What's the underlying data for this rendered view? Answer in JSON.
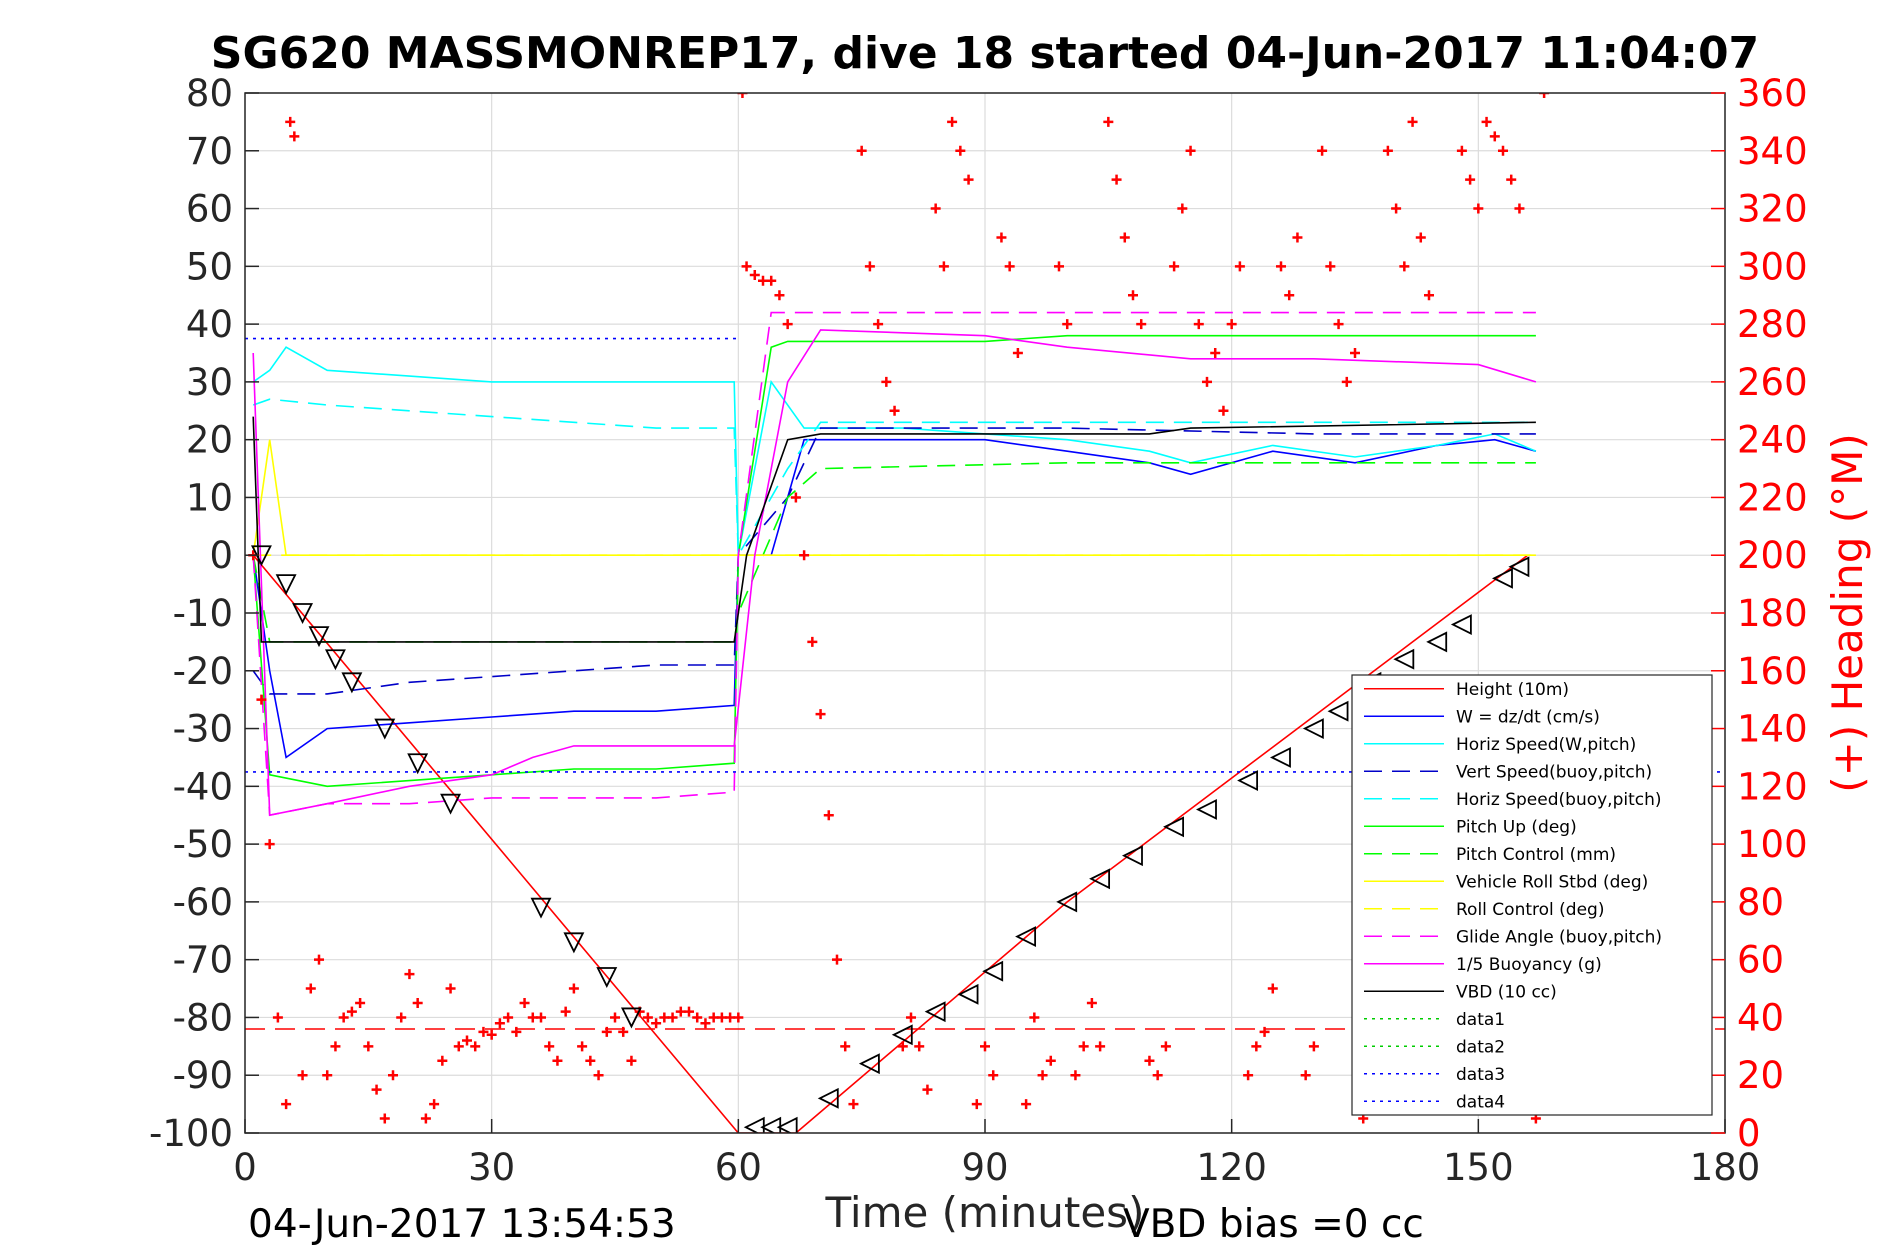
{
  "chart_data": {
    "type": "line",
    "title": "SG620 MASSMONREP17, dive 18 started 04-Jun-2017 11:04:07",
    "xlabel": "Time (minutes)",
    "ylabel_right": "(+) Heading (°M)",
    "xlim": [
      0,
      180
    ],
    "ylim": [
      -100,
      80
    ],
    "ylim_right": [
      0,
      360
    ],
    "x_ticks": [
      0,
      30,
      60,
      90,
      120,
      150,
      180
    ],
    "y_ticks": [
      -100,
      -90,
      -80,
      -70,
      -60,
      -50,
      -40,
      -30,
      -20,
      -10,
      0,
      10,
      20,
      30,
      40,
      50,
      60,
      70,
      80
    ],
    "y_ticks_right": [
      0,
      20,
      40,
      60,
      80,
      100,
      120,
      140,
      160,
      180,
      200,
      220,
      240,
      260,
      280,
      300,
      320,
      340,
      360
    ],
    "grid": true,
    "legend_position": "bottom-right",
    "footer_left": "04-Jun-2017 13:54:53",
    "footer_right": "VBD bias =0 cc",
    "colors": {
      "axis": "#262626",
      "grid": "#dcdcdc",
      "heading": "#ff0000",
      "right_axis": "#ff0000"
    },
    "series": [
      {
        "name": "Height (10m)",
        "color": "#ff0000",
        "style": "solid",
        "x": [
          1,
          60,
          62,
          67,
          100,
          156
        ],
        "y": [
          0,
          -100,
          -100,
          -100,
          -60,
          0
        ]
      },
      {
        "name": "W = dz/dt (cm/s)",
        "color": "#0000ff",
        "style": "solid",
        "x": [
          1,
          3,
          5,
          10,
          20,
          30,
          40,
          50,
          59.5,
          60,
          64,
          68,
          80,
          90,
          100,
          110,
          115,
          125,
          135,
          145,
          152,
          157
        ],
        "y": [
          0,
          -20,
          -35,
          -30,
          -29,
          -28,
          -27,
          -27,
          -26,
          0,
          0,
          20,
          20,
          20,
          18,
          16,
          14,
          18,
          16,
          19,
          20,
          18
        ]
      },
      {
        "name": "Horiz Speed(W,pitch)",
        "color": "#00ffff",
        "style": "solid",
        "x": [
          1,
          3,
          5,
          10,
          20,
          30,
          40,
          50,
          59.5,
          60,
          64,
          68,
          80,
          90,
          100,
          110,
          115,
          125,
          135,
          145,
          152,
          157
        ],
        "y": [
          30,
          32,
          36,
          32,
          31,
          30,
          30,
          30,
          30,
          0,
          30,
          22,
          22,
          21,
          20,
          18,
          16,
          19,
          17,
          19,
          21,
          18
        ]
      },
      {
        "name": "Vert Speed(buoy,pitch)",
        "color": "#0000c8",
        "style": "dashed",
        "x": [
          1,
          3,
          10,
          20,
          30,
          40,
          50,
          59.5,
          60,
          66,
          70,
          100,
          130,
          157
        ],
        "y": [
          -20,
          -24,
          -24,
          -22,
          -21,
          -20,
          -19,
          -19,
          0,
          10,
          22,
          22,
          21,
          21
        ]
      },
      {
        "name": "Horiz Speed(buoy,pitch)",
        "color": "#00ffff",
        "style": "dashed",
        "x": [
          1,
          3,
          10,
          20,
          30,
          40,
          50,
          59.5,
          60,
          66,
          70,
          100,
          130,
          157
        ],
        "y": [
          26,
          27,
          26,
          25,
          24,
          23,
          22,
          22,
          0,
          15,
          23,
          23,
          23,
          23
        ]
      },
      {
        "name": "Pitch Up (deg)",
        "color": "#00ff00",
        "style": "solid",
        "x": [
          1,
          3,
          10,
          20,
          30,
          40,
          50,
          59.5,
          60,
          64,
          66,
          80,
          90,
          100,
          120,
          140,
          157
        ],
        "y": [
          0,
          -38,
          -40,
          -39,
          -38,
          -37,
          -37,
          -36,
          0,
          36,
          37,
          37,
          37,
          38,
          38,
          38,
          38
        ]
      },
      {
        "name": "Pitch Control (mm)",
        "color": "#00ff00",
        "style": "dashed",
        "x": [
          1,
          3,
          30,
          59.5,
          60,
          66,
          70,
          100,
          130,
          157
        ],
        "y": [
          0,
          -15,
          -15,
          -15,
          -10,
          10,
          15,
          16,
          16,
          16
        ]
      },
      {
        "name": "Vehicle Roll Stbd (deg)",
        "color": "#ffff00",
        "style": "solid",
        "x": [
          1,
          3,
          5,
          10,
          20,
          30,
          40,
          50,
          59.5,
          60,
          64,
          66,
          75,
          80,
          90,
          100,
          110,
          120,
          130,
          140,
          150,
          157
        ],
        "y": [
          0,
          20,
          0,
          0,
          0,
          0,
          0,
          0,
          0,
          0,
          0,
          0,
          0,
          0,
          0,
          0,
          0,
          0,
          0,
          0,
          0,
          0
        ]
      },
      {
        "name": "Roll Control (deg)",
        "color": "#ffff00",
        "style": "dashed",
        "x": [
          1,
          3,
          60,
          64,
          70,
          157
        ],
        "y": [
          0,
          0,
          0,
          0,
          0,
          0
        ]
      },
      {
        "name": "Glide Angle (buoy,pitch)",
        "color": "#ff00ff",
        "style": "dashed",
        "x": [
          1,
          3,
          10,
          20,
          30,
          40,
          50,
          59.5,
          60,
          64,
          66,
          80,
          100,
          120,
          140,
          157
        ],
        "y": [
          0,
          -45,
          -43,
          -43,
          -42,
          -42,
          -42,
          -41,
          0,
          42,
          42,
          42,
          42,
          42,
          42,
          42
        ]
      },
      {
        "name": "1/5 Buoyancy (g)",
        "color": "#ff00ff",
        "style": "solid",
        "x": [
          1,
          3,
          10,
          20,
          30,
          35,
          40,
          50,
          59.5,
          62,
          66,
          70,
          90,
          100,
          115,
          130,
          150,
          157
        ],
        "y": [
          35,
          -45,
          -43,
          -40,
          -38,
          -35,
          -33,
          -33,
          -33,
          0,
          30,
          39,
          38,
          36,
          34,
          34,
          33,
          30
        ]
      },
      {
        "name": "VBD (10 cc)",
        "color": "#000000",
        "style": "solid",
        "x": [
          1,
          2,
          10,
          30,
          59.5,
          61,
          66,
          70,
          110,
          115,
          157
        ],
        "y": [
          24,
          -15,
          -15,
          -15,
          -15,
          0,
          20,
          21,
          21,
          22,
          23
        ]
      },
      {
        "name": "data1",
        "color": "#00cc00",
        "style": "dotted",
        "x": [],
        "y": []
      },
      {
        "name": "data2",
        "color": "#00cc00",
        "style": "dotted",
        "x": [],
        "y": []
      },
      {
        "name": "data3",
        "color": "#0000ff",
        "style": "dotted",
        "x": [
          0,
          60
        ],
        "y": [
          37.5,
          37.5
        ]
      },
      {
        "name": "data4",
        "color": "#0000ff",
        "style": "dotted",
        "x": [
          0,
          180
        ],
        "y": [
          -37.5,
          -37.5
        ]
      }
    ],
    "reference_line": {
      "color": "#ff0000",
      "style": "dashed",
      "y": -82
    },
    "triangles": {
      "down": [
        [
          2,
          0
        ],
        [
          5,
          -5
        ],
        [
          7,
          -10
        ],
        [
          9,
          -14
        ],
        [
          11,
          -18
        ],
        [
          13,
          -22
        ],
        [
          17,
          -30
        ],
        [
          21,
          -36
        ],
        [
          25,
          -43
        ],
        [
          36,
          -61
        ],
        [
          40,
          -67
        ],
        [
          44,
          -73
        ],
        [
          47,
          -80
        ]
      ],
      "up": [
        [
          62,
          -99
        ],
        [
          64,
          -99
        ],
        [
          66,
          -99
        ],
        [
          71,
          -94
        ],
        [
          76,
          -88
        ],
        [
          80,
          -83
        ],
        [
          84,
          -79
        ],
        [
          88,
          -76
        ],
        [
          91,
          -72
        ],
        [
          95,
          -66
        ],
        [
          100,
          -60
        ],
        [
          104,
          -56
        ],
        [
          108,
          -52
        ],
        [
          113,
          -47
        ],
        [
          117,
          -44
        ],
        [
          122,
          -39
        ],
        [
          126,
          -35
        ],
        [
          130,
          -30
        ],
        [
          133,
          -27
        ],
        [
          137,
          -22
        ],
        [
          141,
          -18
        ],
        [
          145,
          -15
        ],
        [
          148,
          -12
        ],
        [
          153,
          -4
        ],
        [
          155,
          -2
        ]
      ]
    },
    "heading": {
      "axis": "right",
      "marker": "+",
      "x": [
        1,
        2,
        3,
        4,
        5,
        5.5,
        6,
        7,
        8,
        9,
        10,
        11,
        12,
        13,
        14,
        15,
        16,
        17,
        18,
        19,
        20,
        21,
        22,
        23,
        24,
        25,
        26,
        27,
        28,
        29,
        30,
        31,
        32,
        33,
        34,
        35,
        36,
        37,
        38,
        39,
        40,
        41,
        42,
        43,
        44,
        45,
        46,
        47,
        48,
        49,
        50,
        51,
        52,
        53,
        54,
        55,
        56,
        57,
        58,
        59,
        60,
        60.5,
        61,
        62,
        63,
        64,
        65,
        66,
        67,
        68,
        69,
        70,
        71,
        72,
        73,
        74,
        75,
        76,
        77,
        78,
        79,
        80,
        81,
        82,
        83,
        84,
        85,
        86,
        87,
        88,
        89,
        90,
        91,
        92,
        93,
        94,
        95,
        96,
        97,
        98,
        99,
        100,
        101,
        102,
        103,
        104,
        105,
        106,
        107,
        108,
        109,
        110,
        111,
        112,
        113,
        114,
        115,
        116,
        117,
        118,
        119,
        120,
        121,
        122,
        123,
        124,
        125,
        126,
        127,
        128,
        129,
        130,
        131,
        132,
        133,
        134,
        135,
        136,
        137,
        138,
        139,
        140,
        141,
        142,
        143,
        144,
        145,
        146,
        147,
        148,
        149,
        150,
        151,
        152,
        153,
        154,
        155,
        156,
        157,
        158
      ],
      "y": [
        200,
        150,
        100,
        40,
        10,
        350,
        345,
        20,
        50,
        60,
        20,
        30,
        40,
        42,
        45,
        30,
        15,
        5,
        20,
        40,
        55,
        45,
        5,
        10,
        25,
        50,
        30,
        32,
        30,
        35,
        34,
        38,
        40,
        35,
        45,
        40,
        40,
        30,
        25,
        42,
        50,
        30,
        25,
        20,
        35,
        40,
        35,
        25,
        42,
        40,
        38,
        40,
        40,
        42,
        42,
        40,
        38,
        40,
        40,
        40,
        40,
        360,
        300,
        297,
        295,
        295,
        290,
        280,
        220,
        200,
        170,
        145,
        110,
        60,
        30,
        10,
        340,
        300,
        280,
        260,
        250,
        30,
        40,
        30,
        15,
        320,
        300,
        350,
        340,
        330,
        10,
        30,
        20,
        310,
        300,
        270,
        10,
        40,
        20,
        25,
        300,
        280,
        20,
        30,
        45,
        30,
        350,
        330,
        310,
        290,
        280,
        25,
        20,
        30,
        300,
        320,
        340,
        280,
        260,
        270,
        250,
        280,
        300,
        20,
        30,
        35,
        50,
        300,
        290,
        310,
        20,
        30,
        340,
        300,
        280,
        260,
        270,
        5,
        20,
        40,
        340,
        320,
        300,
        350,
        310,
        290,
        10,
        20,
        15,
        340,
        330,
        320,
        350,
        345,
        340,
        330,
        320,
        10,
        5,
        360
      ]
    }
  }
}
